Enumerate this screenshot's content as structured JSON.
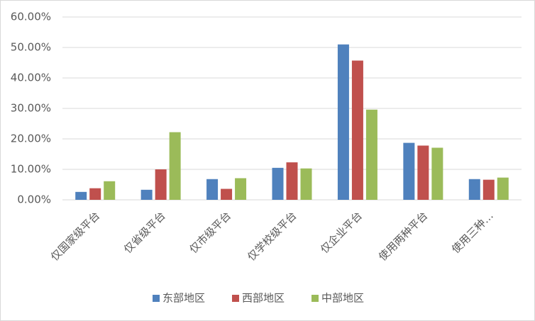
{
  "chart_data": {
    "type": "bar",
    "categories": [
      "仅国家级平台",
      "仅省级平台",
      "仅市级平台",
      "仅学校级平台",
      "仅企业平台",
      "使用两种平台",
      "使用三种…"
    ],
    "series": [
      {
        "name": "东部地区",
        "color": "#4f81bd",
        "values": [
          2.6,
          3.3,
          6.8,
          10.5,
          51.0,
          18.7,
          6.8
        ]
      },
      {
        "name": "西部地区",
        "color": "#c0504d",
        "values": [
          3.8,
          10.0,
          3.6,
          12.3,
          45.7,
          17.8,
          6.6
        ]
      },
      {
        "name": "中部地区",
        "color": "#9bbb59",
        "values": [
          6.1,
          22.2,
          7.1,
          10.3,
          29.6,
          17.1,
          7.3
        ]
      }
    ],
    "ylim": [
      0,
      60
    ],
    "yticks": [
      {
        "value": 0,
        "label": "0.00%"
      },
      {
        "value": 10,
        "label": "10.00%"
      },
      {
        "value": 20,
        "label": "20.00%"
      },
      {
        "value": 30,
        "label": "30.00%"
      },
      {
        "value": 40,
        "label": "40.00%"
      },
      {
        "value": 50,
        "label": "50.00%"
      },
      {
        "value": 60,
        "label": "60.00%"
      }
    ],
    "grid": true,
    "legend": "bottom"
  }
}
